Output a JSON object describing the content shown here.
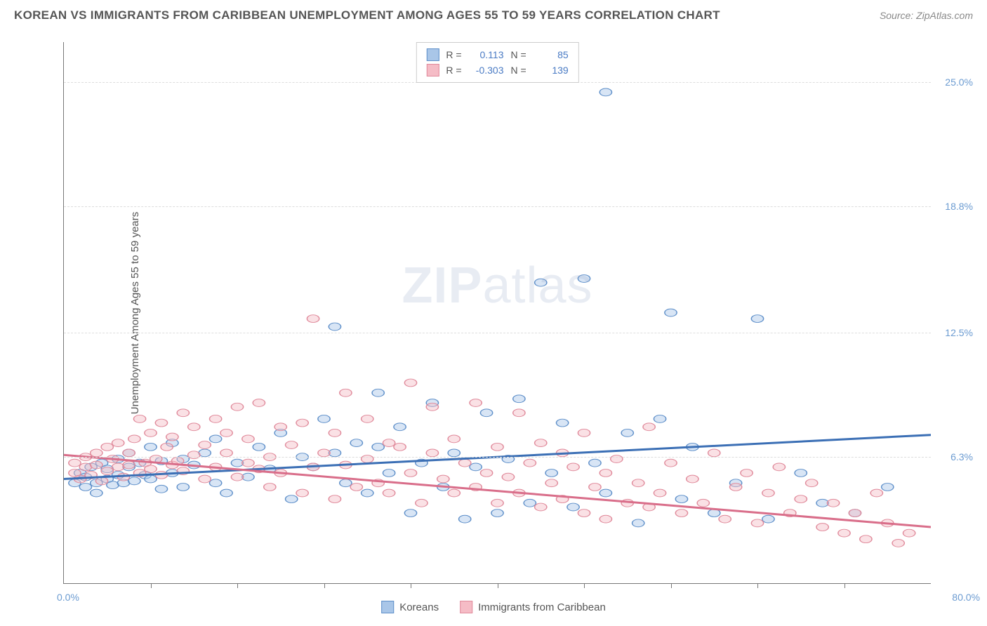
{
  "title": "KOREAN VS IMMIGRANTS FROM CARIBBEAN UNEMPLOYMENT AMONG AGES 55 TO 59 YEARS CORRELATION CHART",
  "source": "Source: ZipAtlas.com",
  "watermark_bold": "ZIP",
  "watermark_light": "atlas",
  "y_axis_label": "Unemployment Among Ages 55 to 59 years",
  "x_origin": "0.0%",
  "x_max": "80.0%",
  "chart": {
    "type": "scatter",
    "xlim": [
      0,
      80
    ],
    "ylim": [
      0,
      27
    ],
    "y_ticks": [
      {
        "v": 25.0,
        "label": "25.0%"
      },
      {
        "v": 18.8,
        "label": "18.8%"
      },
      {
        "v": 12.5,
        "label": "12.5%"
      },
      {
        "v": 6.3,
        "label": "6.3%"
      }
    ],
    "x_tick_positions": [
      8,
      16,
      24,
      32,
      40,
      48,
      56,
      64,
      72
    ],
    "background_color": "#ffffff",
    "grid_color": "#dddddd",
    "marker_radius": 7,
    "marker_opacity": 0.45,
    "series": [
      {
        "key": "koreans",
        "label": "Koreans",
        "fill": "#a9c6e8",
        "stroke": "#5e8fc9",
        "line_color": "#3b6fb5",
        "r_label": "R =",
        "r": "0.113",
        "n_label": "N =",
        "n": "85",
        "trend": {
          "x1": 0,
          "y1": 5.2,
          "x2": 80,
          "y2": 7.4
        },
        "points": [
          [
            1,
            5.0
          ],
          [
            1.5,
            5.5
          ],
          [
            2,
            4.8
          ],
          [
            2,
            5.3
          ],
          [
            2.5,
            5.8
          ],
          [
            3,
            5.0
          ],
          [
            3,
            4.5
          ],
          [
            3.5,
            6.0
          ],
          [
            4,
            5.2
          ],
          [
            4,
            5.7
          ],
          [
            4.5,
            4.9
          ],
          [
            5,
            6.2
          ],
          [
            5,
            5.4
          ],
          [
            5.5,
            5.0
          ],
          [
            6,
            6.5
          ],
          [
            6,
            5.8
          ],
          [
            6.5,
            5.1
          ],
          [
            7,
            6.0
          ],
          [
            7.5,
            5.4
          ],
          [
            8,
            6.8
          ],
          [
            8,
            5.2
          ],
          [
            9,
            4.7
          ],
          [
            9,
            6.1
          ],
          [
            10,
            5.5
          ],
          [
            10,
            7.0
          ],
          [
            11,
            4.8
          ],
          [
            11,
            6.2
          ],
          [
            12,
            5.9
          ],
          [
            13,
            6.5
          ],
          [
            14,
            5.0
          ],
          [
            14,
            7.2
          ],
          [
            15,
            4.5
          ],
          [
            16,
            6.0
          ],
          [
            17,
            5.3
          ],
          [
            18,
            6.8
          ],
          [
            19,
            5.7
          ],
          [
            20,
            7.5
          ],
          [
            21,
            4.2
          ],
          [
            22,
            6.3
          ],
          [
            23,
            5.8
          ],
          [
            24,
            8.2
          ],
          [
            25,
            6.5
          ],
          [
            25,
            12.8
          ],
          [
            26,
            5.0
          ],
          [
            27,
            7.0
          ],
          [
            28,
            4.5
          ],
          [
            29,
            6.8
          ],
          [
            29,
            9.5
          ],
          [
            30,
            5.5
          ],
          [
            31,
            7.8
          ],
          [
            32,
            3.5
          ],
          [
            33,
            6.0
          ],
          [
            34,
            9.0
          ],
          [
            35,
            4.8
          ],
          [
            36,
            6.5
          ],
          [
            37,
            3.2
          ],
          [
            38,
            5.8
          ],
          [
            39,
            8.5
          ],
          [
            40,
            3.5
          ],
          [
            41,
            6.2
          ],
          [
            42,
            9.2
          ],
          [
            43,
            4.0
          ],
          [
            44,
            15.0
          ],
          [
            45,
            5.5
          ],
          [
            46,
            8.0
          ],
          [
            47,
            3.8
          ],
          [
            48,
            15.2
          ],
          [
            49,
            6.0
          ],
          [
            50,
            4.5
          ],
          [
            50,
            24.5
          ],
          [
            52,
            7.5
          ],
          [
            53,
            3.0
          ],
          [
            55,
            8.2
          ],
          [
            56,
            13.5
          ],
          [
            57,
            4.2
          ],
          [
            58,
            6.8
          ],
          [
            60,
            3.5
          ],
          [
            62,
            5.0
          ],
          [
            64,
            13.2
          ],
          [
            65,
            3.2
          ],
          [
            68,
            5.5
          ],
          [
            70,
            4.0
          ],
          [
            73,
            3.5
          ],
          [
            76,
            4.8
          ]
        ]
      },
      {
        "key": "caribbean",
        "label": "Immigrants from Caribbean",
        "fill": "#f5bcc6",
        "stroke": "#e08a9b",
        "line_color": "#d96e8a",
        "r_label": "R =",
        "r": "-0.303",
        "n_label": "N =",
        "n": "139",
        "trend": {
          "x1": 0,
          "y1": 6.4,
          "x2": 80,
          "y2": 2.8
        },
        "points": [
          [
            1,
            5.5
          ],
          [
            1,
            6.0
          ],
          [
            1.5,
            5.2
          ],
          [
            2,
            6.3
          ],
          [
            2,
            5.8
          ],
          [
            2.5,
            5.4
          ],
          [
            3,
            6.5
          ],
          [
            3,
            5.9
          ],
          [
            3.5,
            5.1
          ],
          [
            4,
            6.8
          ],
          [
            4,
            5.6
          ],
          [
            4.5,
            6.2
          ],
          [
            5,
            5.8
          ],
          [
            5,
            7.0
          ],
          [
            5.5,
            5.3
          ],
          [
            6,
            6.5
          ],
          [
            6,
            5.9
          ],
          [
            6.5,
            7.2
          ],
          [
            7,
            5.5
          ],
          [
            7,
            8.2
          ],
          [
            7.5,
            6.0
          ],
          [
            8,
            5.7
          ],
          [
            8,
            7.5
          ],
          [
            8.5,
            6.2
          ],
          [
            9,
            5.4
          ],
          [
            9,
            8.0
          ],
          [
            9.5,
            6.8
          ],
          [
            10,
            5.9
          ],
          [
            10,
            7.3
          ],
          [
            10.5,
            6.1
          ],
          [
            11,
            8.5
          ],
          [
            11,
            5.6
          ],
          [
            12,
            6.4
          ],
          [
            12,
            7.8
          ],
          [
            13,
            5.2
          ],
          [
            13,
            6.9
          ],
          [
            14,
            8.2
          ],
          [
            14,
            5.8
          ],
          [
            15,
            6.5
          ],
          [
            15,
            7.5
          ],
          [
            16,
            5.3
          ],
          [
            16,
            8.8
          ],
          [
            17,
            6.0
          ],
          [
            17,
            7.2
          ],
          [
            18,
            5.7
          ],
          [
            18,
            9.0
          ],
          [
            19,
            4.8
          ],
          [
            19,
            6.3
          ],
          [
            20,
            7.8
          ],
          [
            20,
            5.5
          ],
          [
            21,
            6.9
          ],
          [
            22,
            4.5
          ],
          [
            22,
            8.0
          ],
          [
            23,
            5.8
          ],
          [
            23,
            13.2
          ],
          [
            24,
            6.5
          ],
          [
            25,
            4.2
          ],
          [
            25,
            7.5
          ],
          [
            26,
            5.9
          ],
          [
            26,
            9.5
          ],
          [
            27,
            4.8
          ],
          [
            28,
            6.2
          ],
          [
            28,
            8.2
          ],
          [
            29,
            5.0
          ],
          [
            30,
            7.0
          ],
          [
            30,
            4.5
          ],
          [
            31,
            6.8
          ],
          [
            32,
            5.5
          ],
          [
            32,
            10.0
          ],
          [
            33,
            4.0
          ],
          [
            34,
            6.5
          ],
          [
            34,
            8.8
          ],
          [
            35,
            5.2
          ],
          [
            36,
            4.5
          ],
          [
            36,
            7.2
          ],
          [
            37,
            6.0
          ],
          [
            38,
            4.8
          ],
          [
            38,
            9.0
          ],
          [
            39,
            5.5
          ],
          [
            40,
            4.0
          ],
          [
            40,
            6.8
          ],
          [
            41,
            5.3
          ],
          [
            42,
            4.5
          ],
          [
            42,
            8.5
          ],
          [
            43,
            6.0
          ],
          [
            44,
            3.8
          ],
          [
            44,
            7.0
          ],
          [
            45,
            5.0
          ],
          [
            46,
            4.2
          ],
          [
            46,
            6.5
          ],
          [
            47,
            5.8
          ],
          [
            48,
            3.5
          ],
          [
            48,
            7.5
          ],
          [
            49,
            4.8
          ],
          [
            50,
            5.5
          ],
          [
            50,
            3.2
          ],
          [
            51,
            6.2
          ],
          [
            52,
            4.0
          ],
          [
            53,
            5.0
          ],
          [
            54,
            3.8
          ],
          [
            54,
            7.8
          ],
          [
            55,
            4.5
          ],
          [
            56,
            6.0
          ],
          [
            57,
            3.5
          ],
          [
            58,
            5.2
          ],
          [
            59,
            4.0
          ],
          [
            60,
            6.5
          ],
          [
            61,
            3.2
          ],
          [
            62,
            4.8
          ],
          [
            63,
            5.5
          ],
          [
            64,
            3.0
          ],
          [
            65,
            4.5
          ],
          [
            66,
            5.8
          ],
          [
            67,
            3.5
          ],
          [
            68,
            4.2
          ],
          [
            69,
            5.0
          ],
          [
            70,
            2.8
          ],
          [
            71,
            4.0
          ],
          [
            72,
            2.5
          ],
          [
            73,
            3.5
          ],
          [
            74,
            2.2
          ],
          [
            75,
            4.5
          ],
          [
            76,
            3.0
          ],
          [
            77,
            2.0
          ],
          [
            78,
            2.5
          ]
        ]
      }
    ]
  },
  "bottom_legend": [
    {
      "label": "Koreans",
      "fill": "#a9c6e8",
      "stroke": "#5e8fc9"
    },
    {
      "label": "Immigrants from Caribbean",
      "fill": "#f5bcc6",
      "stroke": "#e08a9b"
    }
  ]
}
